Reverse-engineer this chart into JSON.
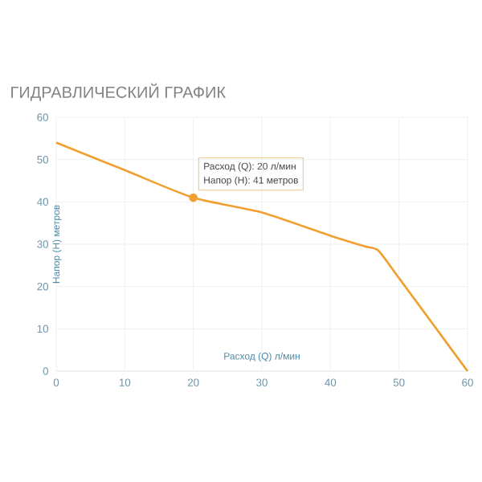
{
  "chart_data": {
    "type": "line",
    "title": "ГИДРАВЛИЧЕСКИЙ ГРАФИК",
    "xlabel": "Расход (Q) л/мин",
    "ylabel": "Напор (Н) метров",
    "xlim": [
      0,
      60
    ],
    "xticks": [
      0,
      10,
      20,
      30,
      40,
      50,
      60
    ],
    "ylim": [
      0,
      60
    ],
    "yticks": [
      0,
      10,
      20,
      30,
      40,
      50,
      60
    ],
    "grid": true,
    "series": [
      {
        "color": "#f0a030",
        "x": [
          0,
          10,
          20,
          30,
          40,
          45,
          47,
          50,
          55,
          60
        ],
        "values": [
          54,
          47.5,
          41,
          37.5,
          32,
          29.5,
          28.5,
          22,
          11,
          0
        ]
      },
      {
        "type": "scatter",
        "color": "#f0a030",
        "x": [
          20
        ],
        "values": [
          41
        ]
      }
    ],
    "annotations": [
      {
        "text": "Расход (Q): 20 л/мин",
        "x": 20,
        "y": 41
      },
      {
        "text": "Напор (H):  41 метров",
        "x": 20,
        "y": 41
      }
    ]
  }
}
